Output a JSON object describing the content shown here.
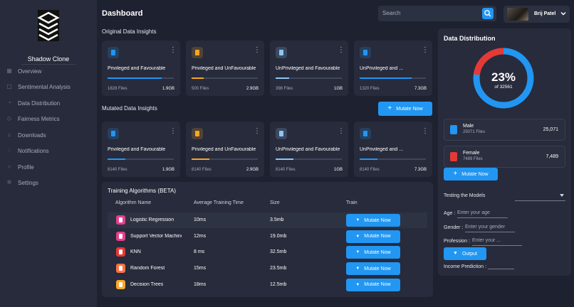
{
  "sidebar": {
    "brand": "Shadow Clone",
    "items": [
      {
        "label": "Overview",
        "icon": "grid-icon"
      },
      {
        "label": "Sentimental Analysis",
        "icon": "chat-icon"
      },
      {
        "label": "Data Distribution",
        "icon": "pie-icon"
      },
      {
        "label": "Fairness Metrics",
        "icon": "scale-icon"
      },
      {
        "label": "Downloads",
        "icon": "download-icon"
      },
      {
        "label": "Notifications",
        "icon": "bell-icon"
      },
      {
        "label": "Profile",
        "icon": "user-icon"
      },
      {
        "label": "Settings",
        "icon": "gear-icon"
      }
    ]
  },
  "header": {
    "title": "Dashboard",
    "search_placeholder": "Search",
    "user_name": "Brij Patel"
  },
  "original": {
    "title": "Original Data Insights",
    "cards": [
      {
        "title": "Privileged and Favourable",
        "files": "1828 Files",
        "size": "1.9GB",
        "progress": 0.82,
        "color": "#2196f3",
        "icon": "document-icon"
      },
      {
        "title": "Privileged and UnFavourable",
        "files": "500 Files",
        "size": "2.9GB",
        "progress": 0.18,
        "color": "#f5a623",
        "icon": "drive-icon"
      },
      {
        "title": "UnPrivileged and Favourable",
        "files": "398 Files",
        "size": "1GB",
        "progress": 0.2,
        "color": "#8ec5f5",
        "icon": "cloud-icon"
      },
      {
        "title": "UnPrivileged and ...",
        "files": "1320 Files",
        "size": "7.3GB",
        "progress": 0.78,
        "color": "#2196f3",
        "icon": "shield-icon"
      }
    ]
  },
  "mutated": {
    "title": "Mutated Data Insights",
    "button": "Mutate Now",
    "cards": [
      {
        "title": "Privileged and Favourable",
        "files": "8140 Files",
        "size": "1.9GB",
        "progress": 0.27,
        "color": "#2196f3",
        "icon": "document-icon"
      },
      {
        "title": "Privileged and UnFavourable",
        "files": "8140 Files",
        "size": "2.9GB",
        "progress": 0.27,
        "color": "#f5a623",
        "icon": "drive-icon"
      },
      {
        "title": "UnPrivileged and Favourable",
        "files": "8140 Files",
        "size": "1GB",
        "progress": 0.27,
        "color": "#8ec5f5",
        "icon": "cloud-icon"
      },
      {
        "title": "UnPrivileged and ...",
        "files": "8140 Files",
        "size": "7.3GB",
        "progress": 0.27,
        "color": "#2196f3",
        "icon": "shield-icon"
      }
    ]
  },
  "algorithms": {
    "title": "Training Algorithms (BETA)",
    "headers": [
      "Algorithm Name",
      "Average Training Time",
      "Size",
      "Train"
    ],
    "button": "Mutate Now",
    "rows": [
      {
        "name": "Logistic Regression",
        "time": "10ms",
        "size": "3.5mb",
        "color": "#e83e8c"
      },
      {
        "name": "Support Vector Machine",
        "time": "12ms",
        "size": "19.0mb",
        "color": "#e83e8c"
      },
      {
        "name": "KNN",
        "time": "8 ms",
        "size": "32.5mb",
        "color": "#e53935"
      },
      {
        "name": "Random Forest",
        "time": "15ms",
        "size": "23.5mb",
        "color": "#ff7043"
      },
      {
        "name": "Decision Trees",
        "time": "18ms",
        "size": "12.5mb",
        "color": "#ffa726"
      }
    ]
  },
  "distribution": {
    "title": "Data Distribution",
    "percent": "23%",
    "total": "of 32561",
    "fraction": 0.23,
    "colors": {
      "primary": "#2196f3",
      "secondary": "#e53935"
    },
    "groups": [
      {
        "name": "Male",
        "files": "25071 Files",
        "count": "25,071",
        "color": "#2196f3"
      },
      {
        "name": "Female",
        "files": "7489 Files",
        "count": "7,489",
        "color": "#e53935"
      }
    ],
    "button": "Mutate Now"
  },
  "form": {
    "testing_label": "Testing the Models",
    "age_label": "Age :",
    "age_placeholder": "Enter your age",
    "gender_label": "Gender :",
    "gender_placeholder": "Enter your gender",
    "profession_label": "Profession :",
    "profession_placeholder": "Enter your ...",
    "output_button": "Output",
    "income_label": "Income Prediction :"
  }
}
